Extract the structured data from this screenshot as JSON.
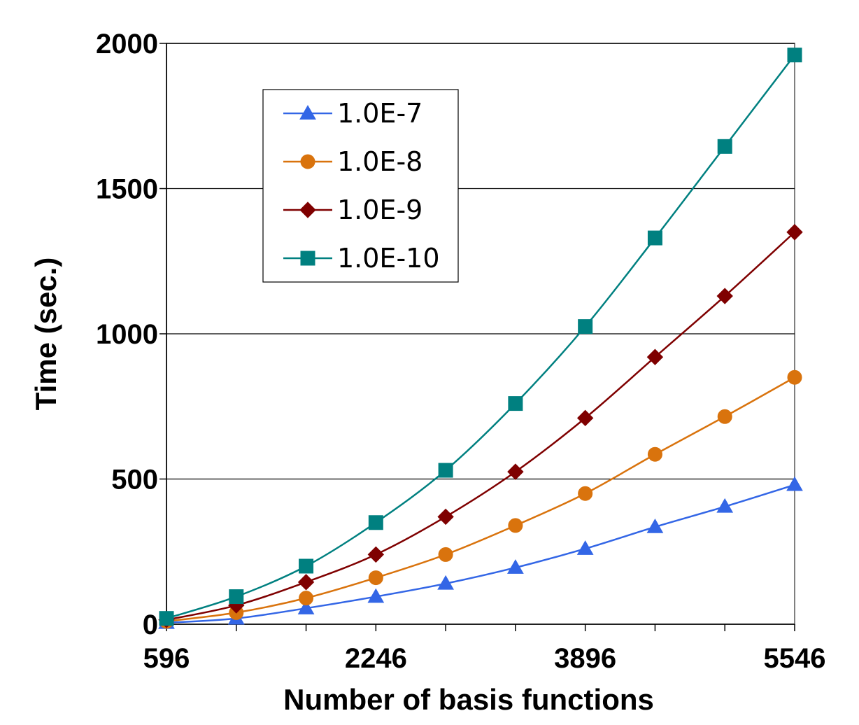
{
  "chart_data": {
    "type": "line",
    "title": "",
    "xlabel": "Number of basis functions",
    "ylabel": "Time (sec.)",
    "x": [
      596,
      1146,
      1696,
      2246,
      2796,
      3346,
      3896,
      4446,
      4996,
      5546
    ],
    "xticks": [
      "596",
      "2246",
      "3896",
      "5546"
    ],
    "yticks": [
      "0",
      "500",
      "1000",
      "1500",
      "2000"
    ],
    "xlim": [
      596,
      5546
    ],
    "ylim": [
      0,
      2000
    ],
    "grid": "horizontal",
    "legend_position": "top-left",
    "series": [
      {
        "name": "1.0E-7",
        "color": "#3366e6",
        "marker": "triangle",
        "values": [
          5,
          20,
          55,
          95,
          140,
          195,
          260,
          335,
          405,
          480
        ]
      },
      {
        "name": "1.0E-8",
        "color": "#d9730d",
        "marker": "circle",
        "values": [
          10,
          40,
          90,
          160,
          240,
          340,
          450,
          585,
          715,
          850
        ]
      },
      {
        "name": "1.0E-9",
        "color": "#7f0000",
        "marker": "diamond",
        "values": [
          15,
          65,
          145,
          240,
          370,
          525,
          710,
          920,
          1130,
          1350
        ]
      },
      {
        "name": "1.0E-10",
        "color": "#008080",
        "marker": "square",
        "values": [
          20,
          95,
          200,
          350,
          530,
          760,
          1025,
          1330,
          1645,
          1960
        ]
      }
    ]
  }
}
